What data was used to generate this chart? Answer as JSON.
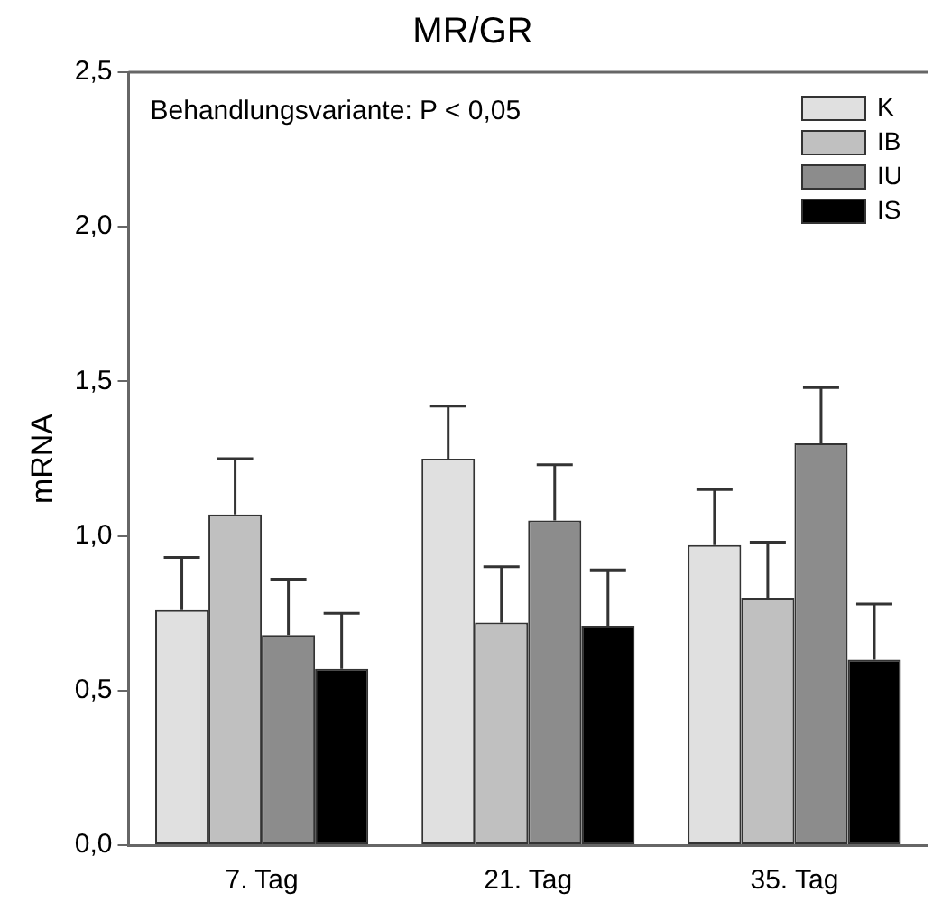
{
  "chart_data": {
    "type": "bar",
    "title": "MR/GR",
    "ylabel": "mRNA",
    "categories": [
      "7. Tag",
      "21. Tag",
      "35. Tag"
    ],
    "series": [
      {
        "name": "K",
        "color": "#e0e0e0",
        "values": [
          0.76,
          1.25,
          0.97
        ],
        "errors": [
          [
            0.76,
            0.93
          ],
          [
            1.25,
            1.42
          ],
          [
            0.97,
            1.15
          ]
        ]
      },
      {
        "name": "IB",
        "color": "#c0c0c0",
        "values": [
          1.07,
          0.72,
          0.8
        ],
        "errors": [
          [
            1.07,
            1.25
          ],
          [
            0.72,
            0.9
          ],
          [
            0.8,
            0.98
          ]
        ]
      },
      {
        "name": "IU",
        "color": "#8c8c8c",
        "values": [
          0.68,
          1.05,
          1.3
        ],
        "errors": [
          [
            0.68,
            0.86
          ],
          [
            1.05,
            1.23
          ],
          [
            1.3,
            1.48
          ]
        ]
      },
      {
        "name": "IS",
        "color": "#000000",
        "values": [
          0.57,
          0.71,
          0.6
        ],
        "errors": [
          [
            0.57,
            0.75
          ],
          [
            0.71,
            0.89
          ],
          [
            0.6,
            0.78
          ]
        ]
      }
    ],
    "ylim": [
      0,
      2.5
    ],
    "yticks": [
      {
        "value": 0,
        "label": "0,0"
      },
      {
        "value": 0.5,
        "label": "0,5"
      },
      {
        "value": 1,
        "label": "1,0"
      },
      {
        "value": 1.5,
        "label": "1,5"
      },
      {
        "value": 2,
        "label": "2,0"
      },
      {
        "value": 2.5,
        "label": "2,5"
      }
    ],
    "annotations": [
      "Behandlungsvariante: P < 0,05"
    ],
    "legend": "top right",
    "grid": false
  }
}
